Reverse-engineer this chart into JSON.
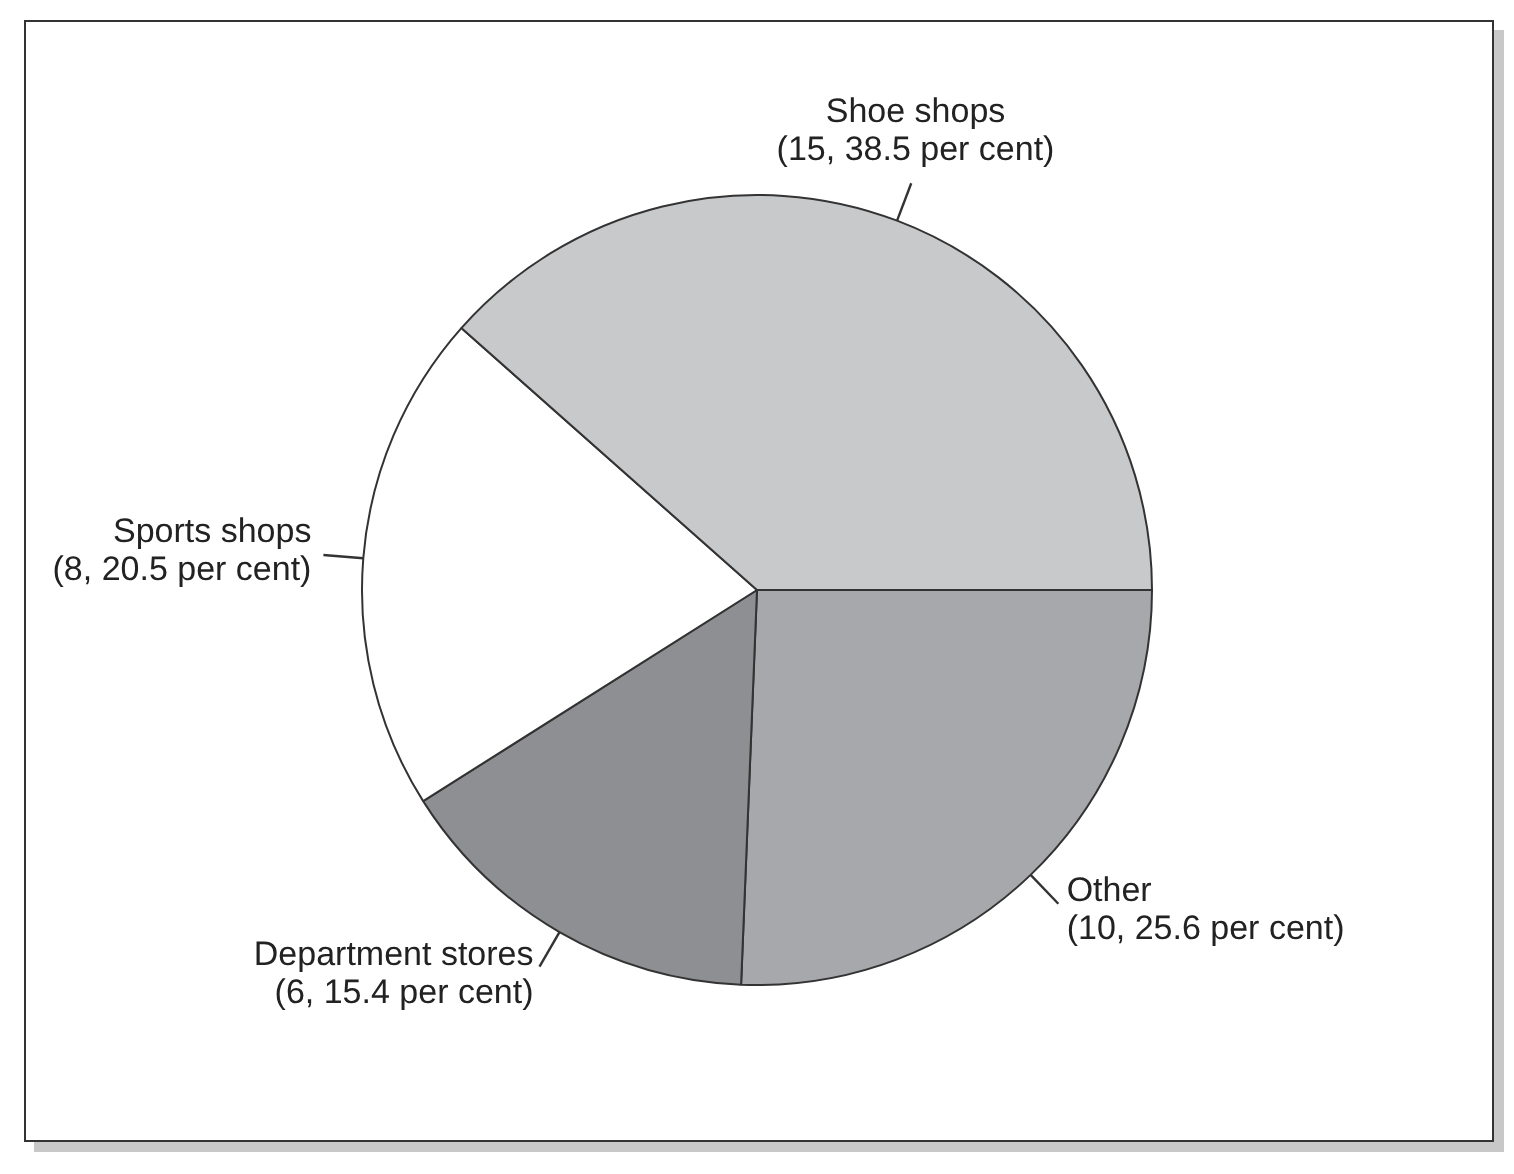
{
  "chart_data": {
    "type": "pie",
    "categories": [
      "Other",
      "Department stores",
      "Sports shops",
      "Shoe shops"
    ],
    "values": [
      10,
      6,
      8,
      15
    ],
    "value_labels": [
      "(10, 25.6 per cent)",
      "(6, 15.4 per cent)",
      "(8, 20.5 per cent)",
      "(15, 38.5 per cent)"
    ],
    "colors": [
      "#a7a8ab",
      "#8e8f92",
      "#ffffff",
      "#c8c9cb"
    ],
    "legend": false
  }
}
